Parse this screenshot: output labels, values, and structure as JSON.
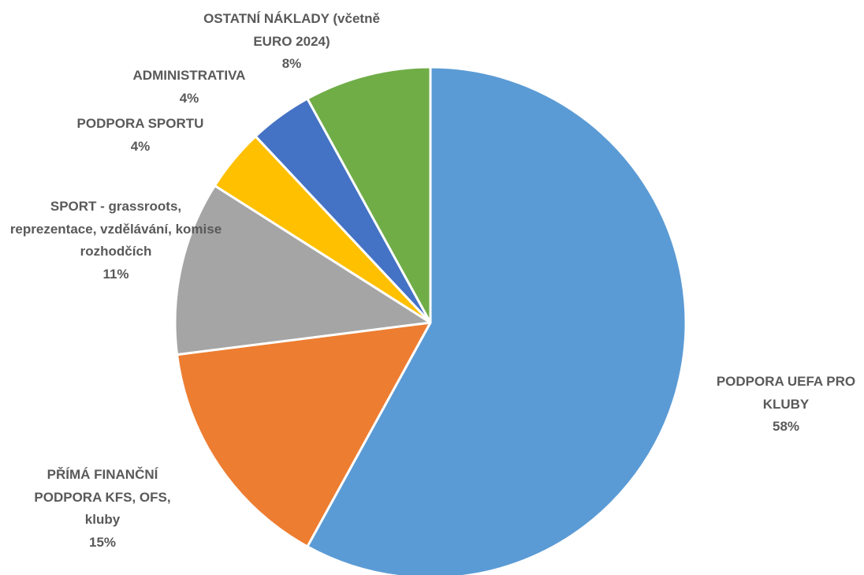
{
  "chart_data": {
    "type": "pie",
    "categories": [
      "PODPORA UEFA PRO KLUBY",
      "PŘÍMÁ FINANČNÍ PODPORA KFS, OFS, kluby",
      "SPORT - grassroots, reprezentace, vzdělávání, komise rozhodčích",
      "PODPORA SPORTU",
      "ADMINISTRATIVA",
      "OSTATNÍ NÁKLADY (včetně EURO 2024)"
    ],
    "values": [
      58,
      15,
      11,
      4,
      4,
      8
    ],
    "value_labels": [
      "58%",
      "15%",
      "11%",
      "4%",
      "4%",
      "8%"
    ],
    "colors": [
      "#5b9bd5",
      "#ed7d31",
      "#a5a5a5",
      "#ffc000",
      "#4472c4",
      "#70ad47"
    ]
  }
}
